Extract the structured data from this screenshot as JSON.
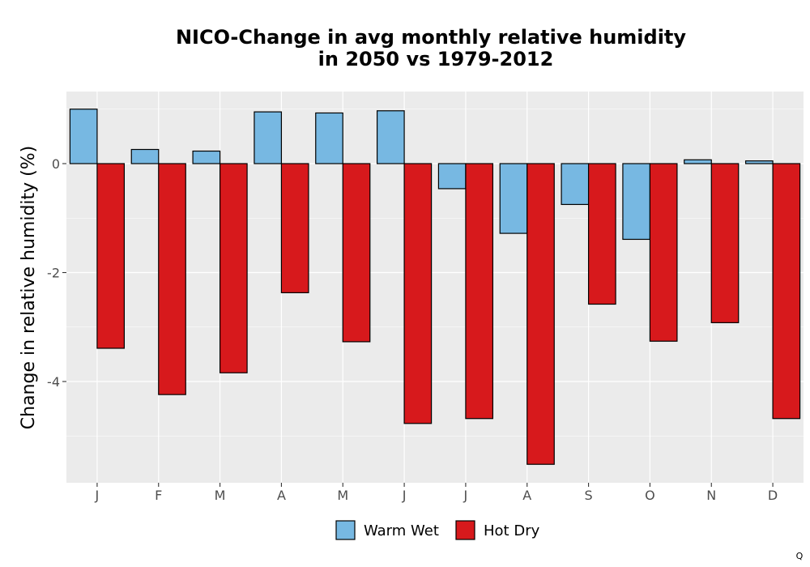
{
  "chart_data": {
    "type": "bar",
    "title": [
      "NICO-Change in avg monthly relative humidity",
      "in 2050 vs 1979-2012"
    ],
    "xlabel": "",
    "ylabel": "Change in relative humidity (%)",
    "categories": [
      "J",
      "F",
      "M",
      "A",
      "M",
      "J",
      "J",
      "A",
      "S",
      "O",
      "N",
      "D"
    ],
    "series": [
      {
        "name": "Warm Wet",
        "color": "#77b8e2",
        "values": [
          1.0,
          0.26,
          0.23,
          0.95,
          0.93,
          0.97,
          -0.46,
          -1.28,
          -0.75,
          -1.39,
          0.07,
          0.05
        ]
      },
      {
        "name": "Hot Dry",
        "color": "#d7191c",
        "values": [
          -3.39,
          -4.24,
          -3.84,
          -2.37,
          -3.27,
          -4.77,
          -4.68,
          -5.52,
          -2.58,
          -3.26,
          -2.92,
          -4.68
        ]
      }
    ],
    "ylim": [
      -5.85,
      1.3
    ],
    "yticks": [
      0,
      -2,
      -4
    ],
    "ytick_labels": [
      "0",
      "-2",
      "-4"
    ],
    "grid": true,
    "legend_position": "bottom",
    "panel_background": "#ebebeb"
  },
  "corner_mark": "Q"
}
